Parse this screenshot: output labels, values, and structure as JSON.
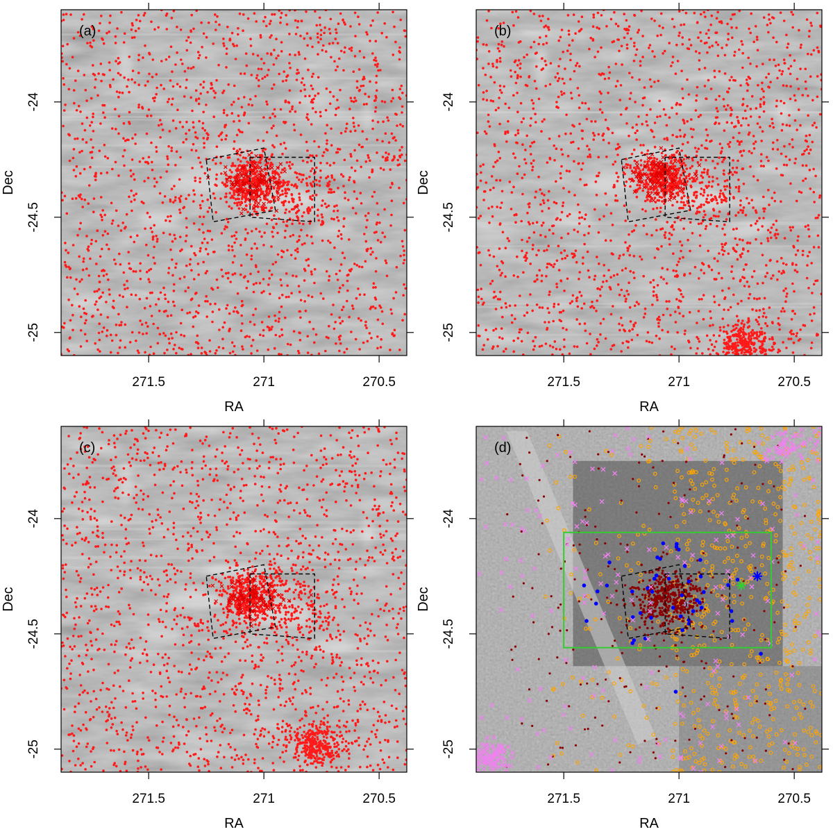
{
  "figure": {
    "panels": [
      {
        "id": "a",
        "label": "(a)",
        "xlabel": "RA",
        "ylabel": "Dec"
      },
      {
        "id": "b",
        "label": "(b)",
        "xlabel": "RA",
        "ylabel": "Dec"
      },
      {
        "id": "c",
        "label": "(c)",
        "xlabel": "RA",
        "ylabel": "Dec"
      },
      {
        "id": "d",
        "label": "(d)",
        "xlabel": "RA",
        "ylabel": "Dec"
      }
    ],
    "xticks": [
      "271.5",
      "271",
      "270.5"
    ],
    "yticks": [
      "-24",
      "-24.5",
      "-25"
    ]
  },
  "chart_data": [
    {
      "type": "scatter",
      "panel": "(a)",
      "xlabel": "RA",
      "ylabel": "Dec",
      "xlim": [
        271.88,
        270.38
      ],
      "ylim": [
        -25.1,
        -23.6
      ],
      "xticks": [
        271.5,
        271.0,
        270.5
      ],
      "yticks": [
        -24.0,
        -24.5,
        -25.0
      ],
      "background": "grayscale sky image",
      "colors": {
        "points": "#ff1a1a",
        "crosses": "#e00000",
        "boxes": "#000000"
      },
      "cluster_center": [
        271.05,
        -24.35
      ],
      "field_boxes": [
        [
          [
            271.25,
            -24.25
          ],
          [
            271.0,
            -24.2
          ],
          [
            270.95,
            -24.47
          ],
          [
            271.22,
            -24.52
          ]
        ],
        [
          [
            271.06,
            -24.24
          ],
          [
            270.78,
            -24.24
          ],
          [
            270.78,
            -24.52
          ],
          [
            271.06,
            -24.5
          ]
        ]
      ]
    },
    {
      "type": "scatter",
      "panel": "(b)",
      "xlabel": "RA",
      "ylabel": "Dec",
      "xlim": [
        271.88,
        270.38
      ],
      "ylim": [
        -25.1,
        -23.6
      ],
      "xticks": [
        271.5,
        271.0,
        270.5
      ],
      "yticks": [
        -24.0,
        -24.5,
        -25.0
      ],
      "background": "grayscale sky image",
      "colors": {
        "points": "#ff1a1a",
        "crosses": "#e00000",
        "boxes": "#000000"
      },
      "cluster_center": [
        271.07,
        -24.33
      ],
      "secondary_clump": [
        270.72,
        -25.05
      ],
      "field_boxes": [
        [
          [
            271.25,
            -24.25
          ],
          [
            271.0,
            -24.2
          ],
          [
            270.95,
            -24.47
          ],
          [
            271.22,
            -24.52
          ]
        ],
        [
          [
            271.06,
            -24.24
          ],
          [
            270.78,
            -24.24
          ],
          [
            270.78,
            -24.52
          ],
          [
            271.06,
            -24.5
          ]
        ]
      ]
    },
    {
      "type": "scatter",
      "panel": "(c)",
      "xlabel": "RA",
      "ylabel": "Dec",
      "xlim": [
        271.88,
        270.38
      ],
      "ylim": [
        -25.1,
        -23.6
      ],
      "xticks": [
        271.5,
        271.0,
        270.5
      ],
      "yticks": [
        -24.0,
        -24.5,
        -25.0
      ],
      "background": "grayscale sky image",
      "colors": {
        "points": "#ff1a1a",
        "crosses": "#e00000",
        "boxes": "#000000"
      },
      "cluster_center": [
        271.05,
        -24.35
      ],
      "secondary_clump": [
        270.78,
        -24.98
      ],
      "field_boxes": [
        [
          [
            271.25,
            -24.25
          ],
          [
            271.0,
            -24.2
          ],
          [
            270.95,
            -24.47
          ],
          [
            271.22,
            -24.52
          ]
        ],
        [
          [
            271.06,
            -24.24
          ],
          [
            270.78,
            -24.24
          ],
          [
            270.78,
            -24.52
          ],
          [
            271.06,
            -24.5
          ]
        ]
      ]
    },
    {
      "type": "scatter",
      "panel": "(d)",
      "xlabel": "RA",
      "ylabel": "Dec",
      "xlim": [
        271.88,
        270.38
      ],
      "ylim": [
        -25.1,
        -23.6
      ],
      "xticks": [
        271.5,
        271.0,
        270.5
      ],
      "yticks": [
        -24.0,
        -24.5,
        -25.0
      ],
      "background": "grayscale sky image with darker survey footprint",
      "colors": {
        "orange_circles": "#ffa500",
        "darkred_points": "#8b0000",
        "blue_points": "#0000ff",
        "violet_crosses": "#ee82ee",
        "green_box": "#33cc33",
        "green_star": "#33cc33",
        "blue_star": "#0000ff",
        "boxes": "#000000"
      },
      "cluster_center": [
        271.05,
        -24.35
      ],
      "green_box": [
        [
          271.5,
          -24.06
        ],
        [
          270.6,
          -24.56
        ]
      ],
      "star_markers": [
        {
          "color": "green",
          "ra": 270.73,
          "dec": -24.29
        },
        {
          "color": "blue",
          "ra": 270.66,
          "dec": -24.25
        }
      ],
      "field_boxes": [
        [
          [
            271.25,
            -24.25
          ],
          [
            271.0,
            -24.2
          ],
          [
            270.95,
            -24.47
          ],
          [
            271.22,
            -24.52
          ]
        ],
        [
          [
            271.06,
            -24.24
          ],
          [
            270.78,
            -24.24
          ],
          [
            270.78,
            -24.52
          ],
          [
            271.06,
            -24.5
          ]
        ]
      ]
    }
  ]
}
